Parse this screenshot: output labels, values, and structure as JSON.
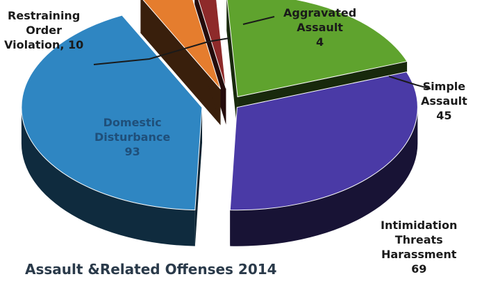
{
  "chart_data": {
    "type": "pie",
    "style": "3d-exploded",
    "title": "Assault &Related Offenses 2014",
    "slices": [
      {
        "label_lines": [
          "Aggravated",
          "Assault"
        ],
        "value_text": "4",
        "value": 4,
        "color": "#8e2a2a"
      },
      {
        "label_lines": [
          "Simple",
          "Assault"
        ],
        "value_text": "45",
        "value": 45,
        "color": "#5fa32e"
      },
      {
        "label_lines": [
          "Intimidation",
          "Threats",
          "Harassment"
        ],
        "value_text": "69",
        "value": 69,
        "color": "#4a3aa6"
      },
      {
        "label_lines": [
          "Domestic",
          "Disturbance"
        ],
        "value_text": "93",
        "value": 93,
        "color": "#2f86c2"
      },
      {
        "label_lines": [
          "Restraining",
          "Order"
        ],
        "value_text": "Violation, 10",
        "value": 10,
        "color": "#e57d2e"
      }
    ]
  }
}
